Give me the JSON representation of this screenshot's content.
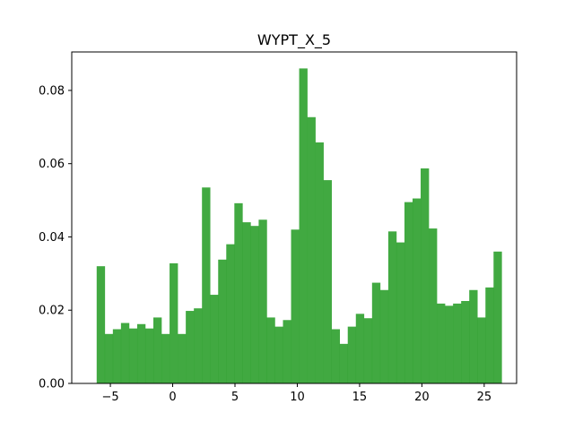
{
  "chart_data": {
    "type": "bar",
    "title": "WYPT_X_5",
    "xlabel": "",
    "ylabel": "",
    "xlim": [
      -8.1,
      27.6
    ],
    "ylim": [
      0,
      0.0905
    ],
    "x_ticks": [
      -5,
      0,
      5,
      10,
      15,
      20,
      25
    ],
    "x_tick_labels": [
      "−5",
      "0",
      "5",
      "10",
      "15",
      "20",
      "25"
    ],
    "y_ticks": [
      0,
      0.02,
      0.04,
      0.06,
      0.08
    ],
    "y_tick_labels": [
      "0.00",
      "0.02",
      "0.04",
      "0.06",
      "0.08"
    ],
    "bin_start": -6.1,
    "bin_width": 0.65,
    "bar_color": "#2ca02c",
    "bar_alpha": 0.9,
    "grid": false,
    "values": [
      0.032,
      0.0135,
      0.0148,
      0.0165,
      0.015,
      0.0162,
      0.015,
      0.018,
      0.0135,
      0.0328,
      0.0135,
      0.0198,
      0.0205,
      0.0535,
      0.0242,
      0.0338,
      0.038,
      0.0492,
      0.044,
      0.043,
      0.0447,
      0.018,
      0.0155,
      0.0173,
      0.042,
      0.086,
      0.0727,
      0.0658,
      0.0555,
      0.0148,
      0.0108,
      0.0155,
      0.019,
      0.0178,
      0.0275,
      0.0255,
      0.0415,
      0.0385,
      0.0495,
      0.0505,
      0.0587,
      0.0423,
      0.0218,
      0.0212,
      0.0218,
      0.0225,
      0.0255,
      0.018,
      0.0262,
      0.036
    ]
  }
}
